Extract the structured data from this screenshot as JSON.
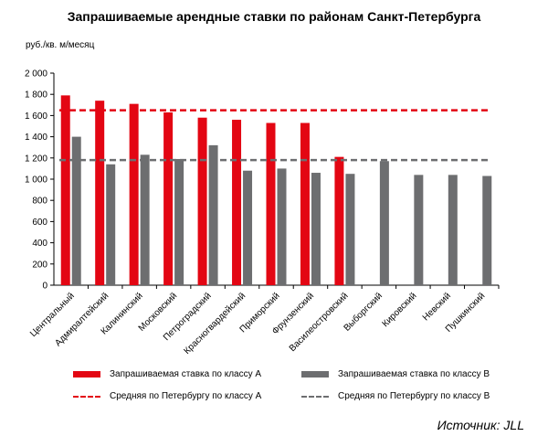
{
  "chart_data": {
    "type": "bar",
    "title": "Запрашиваемые арендные ставки по районам Санкт-Петербурга",
    "ylabel": "руб./кв. м/месяц",
    "xlabel": "",
    "ylim": [
      0,
      2000
    ],
    "yticks": [
      "2 000",
      "1 800",
      "1 600",
      "1 400",
      "1 200",
      "1 000",
      "800",
      "600",
      "400",
      "200",
      "0"
    ],
    "categories": [
      "Центральный",
      "Адмиралтейский",
      "Калининский",
      "Московский",
      "Петроградский",
      "Красногвардейский",
      "Приморский",
      "Фрунзенский",
      "Василеостровский",
      "Выборгский",
      "Кировский",
      "Невский",
      "Пушкинский"
    ],
    "series": [
      {
        "name": "Запрашиваемая ставка по классу А",
        "color": "#e30613",
        "values": [
          1790,
          1740,
          1710,
          1630,
          1580,
          1560,
          1530,
          1530,
          1210,
          null,
          null,
          null,
          null
        ]
      },
      {
        "name": "Запрашиваемая ставка по классу В",
        "color": "#6d6e70",
        "values": [
          1400,
          1140,
          1230,
          1190,
          1320,
          1080,
          1100,
          1060,
          1050,
          1170,
          1040,
          1040,
          1030
        ]
      }
    ],
    "averages": [
      {
        "name": "Средняя по Петербургу по классу А",
        "color": "#e30613",
        "value": 1650
      },
      {
        "name": "Средняя по Петербургу по классу В",
        "color": "#6d6e70",
        "value": 1180
      }
    ],
    "grid": false,
    "legend_placement": "bottom"
  },
  "source": "Источник: JLL"
}
